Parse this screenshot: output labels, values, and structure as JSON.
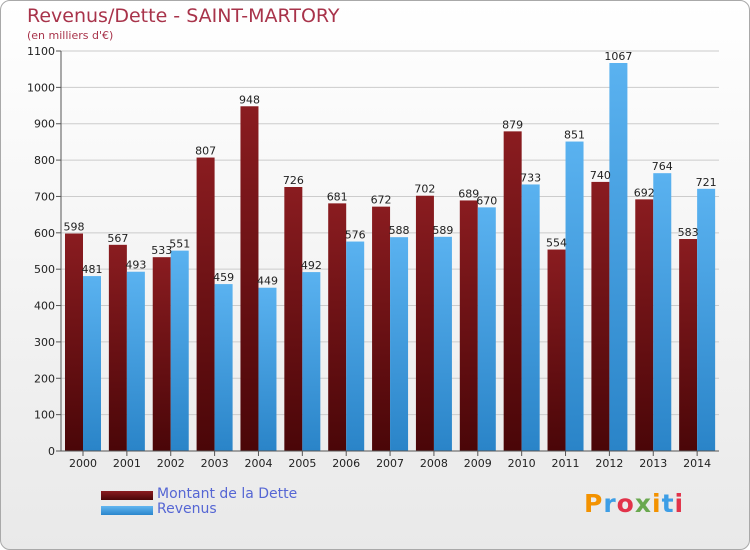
{
  "title": "Revenus/Dette - SAINT-MARTORY",
  "subtitle": "(en milliers d'€)",
  "logo": "Proxiti",
  "colors": {
    "dette": "#6b0e12",
    "revenus": "#3d9ee6",
    "grid": "#c8c8c8",
    "title": "#a8334a",
    "legend_text": "#5566d4"
  },
  "chart_data": {
    "type": "bar",
    "title": "Revenus/Dette - SAINT-MARTORY",
    "subtitle": "(en milliers d'€)",
    "categories": [
      "2000",
      "2001",
      "2002",
      "2003",
      "2004",
      "2005",
      "2006",
      "2007",
      "2008",
      "2009",
      "2010",
      "2011",
      "2012",
      "2013",
      "2014"
    ],
    "series": [
      {
        "name": "Montant de la Dette",
        "color": "#6b0e12",
        "values": [
          598,
          567,
          533,
          807,
          948,
          726,
          681,
          672,
          702,
          689,
          879,
          554,
          740,
          692,
          583
        ]
      },
      {
        "name": "Revenus",
        "color": "#3d9ee6",
        "values": [
          481,
          493,
          551,
          459,
          449,
          492,
          576,
          588,
          589,
          670,
          733,
          851,
          1067,
          764,
          721
        ]
      }
    ],
    "ylim": [
      0,
      1100
    ],
    "yticks": [
      0,
      100,
      200,
      300,
      400,
      500,
      600,
      700,
      800,
      900,
      1000,
      1100
    ],
    "grid": true,
    "legend_position": "bottom-left"
  }
}
